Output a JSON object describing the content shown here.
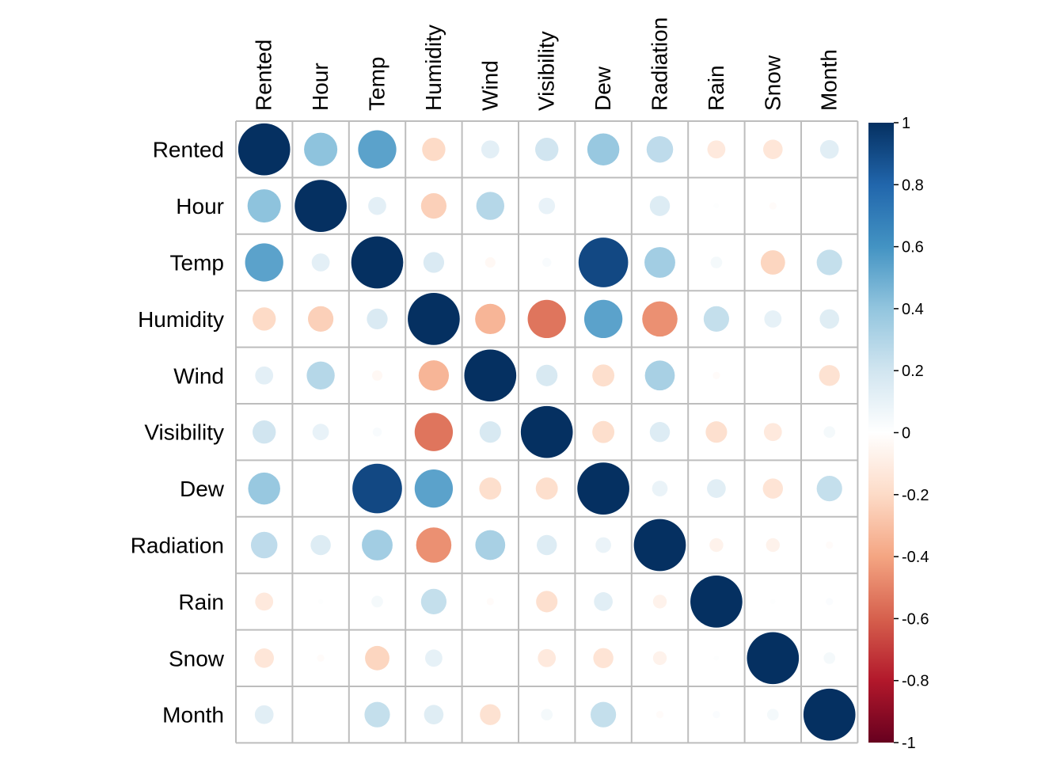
{
  "chart_data": {
    "type": "heatmap",
    "title": "",
    "labels": [
      "Rented",
      "Hour",
      "Temp",
      "Humidity",
      "Wind",
      "Visibility",
      "Dew",
      "Radiation",
      "Rain",
      "Snow",
      "Month"
    ],
    "matrix": [
      [
        1.0,
        0.41,
        0.54,
        -0.2,
        0.12,
        0.2,
        0.38,
        0.26,
        -0.12,
        -0.14,
        0.13
      ],
      [
        0.41,
        1.0,
        0.12,
        -0.24,
        0.29,
        0.1,
        0.0,
        0.15,
        0.01,
        -0.02,
        0.0
      ],
      [
        0.54,
        0.12,
        1.0,
        0.16,
        -0.04,
        0.03,
        0.91,
        0.35,
        0.05,
        -0.22,
        0.24
      ],
      [
        -0.2,
        -0.24,
        0.16,
        1.0,
        -0.34,
        -0.54,
        0.54,
        -0.46,
        0.24,
        0.11,
        0.14
      ],
      [
        0.12,
        0.29,
        -0.04,
        -0.34,
        1.0,
        0.17,
        -0.18,
        0.33,
        -0.02,
        0.0,
        -0.16
      ],
      [
        0.2,
        0.1,
        0.03,
        -0.54,
        0.17,
        1.0,
        -0.18,
        0.15,
        -0.17,
        -0.12,
        0.05
      ],
      [
        0.38,
        0.0,
        0.91,
        0.54,
        -0.18,
        -0.18,
        1.0,
        0.09,
        0.13,
        -0.15,
        0.24
      ],
      [
        0.26,
        0.15,
        0.35,
        -0.46,
        0.33,
        0.15,
        0.09,
        1.0,
        -0.07,
        -0.07,
        -0.02
      ],
      [
        -0.12,
        0.01,
        0.05,
        0.24,
        -0.02,
        -0.17,
        0.13,
        -0.07,
        1.0,
        0.01,
        0.02
      ],
      [
        -0.14,
        -0.02,
        -0.22,
        0.11,
        0.0,
        -0.12,
        -0.15,
        -0.07,
        0.01,
        1.0,
        0.05
      ],
      [
        0.13,
        0.0,
        0.24,
        0.14,
        -0.16,
        0.05,
        0.24,
        -0.02,
        0.02,
        0.05,
        1.0
      ]
    ],
    "colorbar": {
      "min": -1,
      "max": 1,
      "ticks": [
        "1",
        "0.8",
        "0.6",
        "0.4",
        "0.2",
        "0",
        "-0.2",
        "-0.4",
        "-0.6",
        "-0.8",
        "-1"
      ],
      "tick_values": [
        1,
        0.8,
        0.6,
        0.4,
        0.2,
        0,
        -0.2,
        -0.4,
        -0.6,
        -0.8,
        -1
      ],
      "colors": [
        "#67001F",
        "#B2182B",
        "#D6604D",
        "#F4A582",
        "#FDDBC7",
        "#FFFFFF",
        "#D1E5F0",
        "#92C5DE",
        "#4393C3",
        "#2166AC",
        "#053061"
      ]
    },
    "grid": true
  }
}
